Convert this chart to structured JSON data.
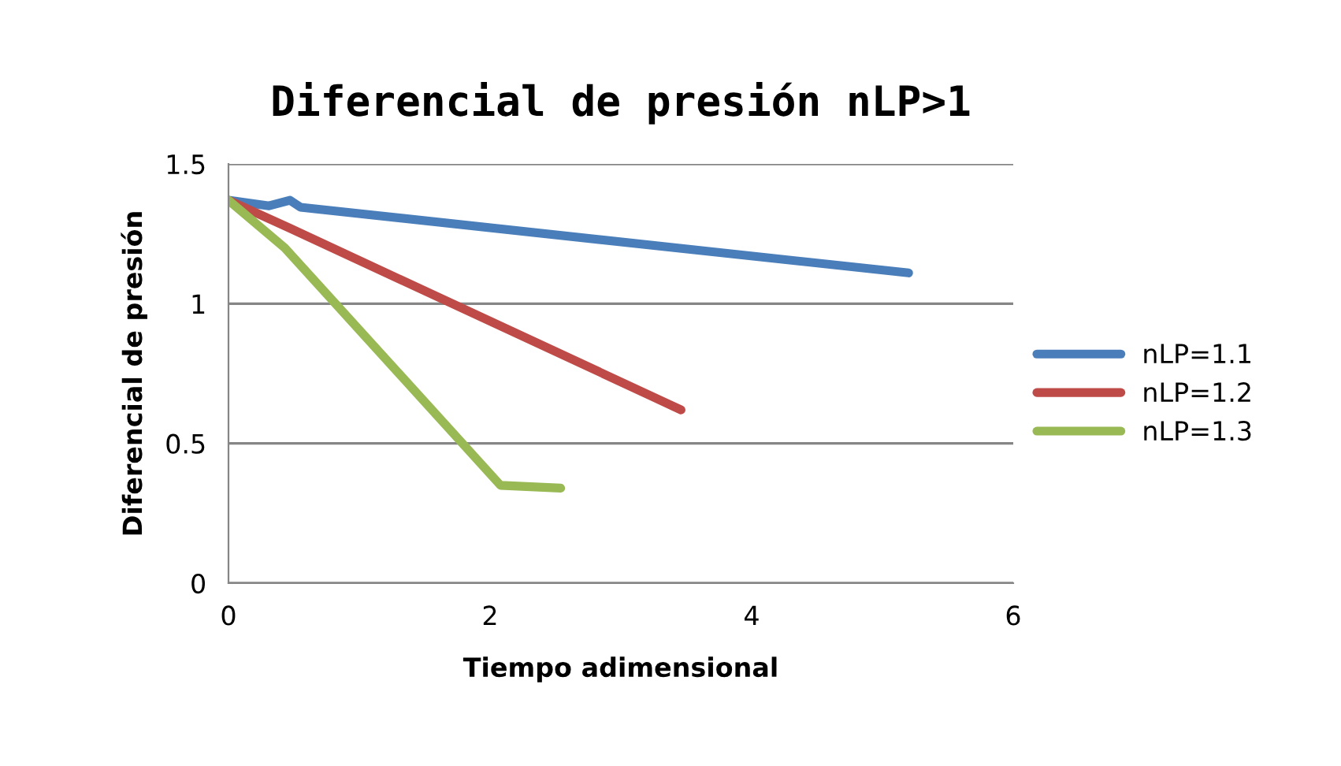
{
  "chart_data": {
    "type": "line",
    "title": "Diferencial de presión nLP>1",
    "xlabel": "Tiempo adimensional",
    "ylabel": "Diferencial de presión",
    "xlim": [
      0,
      6
    ],
    "xticks": [
      0,
      2,
      4,
      6
    ],
    "ylim": [
      0,
      1.5
    ],
    "yticks": [
      0,
      0.5,
      1,
      1.5
    ],
    "grid": "y",
    "legend": "right",
    "marker": "none",
    "line_style": "solid",
    "series": [
      {
        "name": "nLP=1.1",
        "color": "#4a7ebb",
        "x": [
          0,
          0.31,
          0.47,
          0.55,
          5.2
        ],
        "values": [
          1.37,
          1.35,
          1.37,
          1.345,
          1.11
        ]
      },
      {
        "name": "nLP=1.2",
        "color": "#be4b48",
        "x": [
          0,
          0.47,
          3.46
        ],
        "values": [
          1.37,
          1.27,
          0.62
        ]
      },
      {
        "name": "nLP=1.3",
        "color": "#98b954",
        "x": [
          0,
          0.43,
          2.08,
          2.54
        ],
        "values": [
          1.37,
          1.2,
          0.35,
          0.34
        ]
      }
    ]
  }
}
